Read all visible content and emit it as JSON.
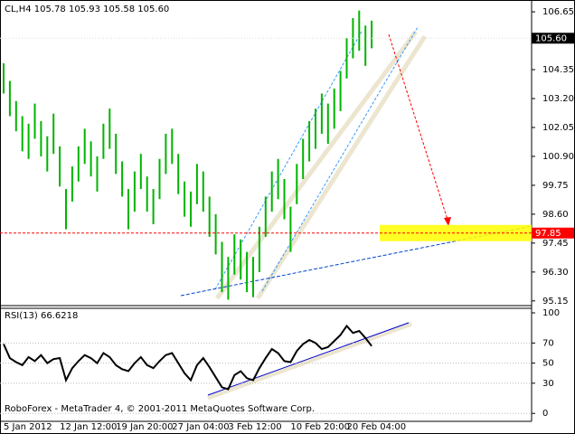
{
  "chart_data": [
    {
      "type": "hilo",
      "title": "CL,H4  105.78 105.93 105.58 105.60",
      "color": "#00b400",
      "categories": [
        "5 Jan 2012",
        null,
        null,
        null,
        null,
        null,
        null,
        null,
        null,
        "12 Jan 12:00",
        null,
        null,
        null,
        null,
        null,
        null,
        null,
        null,
        "19 Jan 20:00",
        null,
        null,
        null,
        null,
        null,
        null,
        null,
        null,
        "27 Jan 04:00",
        null,
        null,
        null,
        null,
        null,
        null,
        null,
        null,
        "3 Feb 12:00",
        null,
        null,
        null,
        null,
        null,
        null,
        null,
        null,
        null,
        "10 Feb 20:00",
        null,
        null,
        null,
        null,
        null,
        null,
        null,
        null,
        "20 Feb 04:00",
        null,
        null,
        null,
        null
      ],
      "high": [
        104.6,
        103.9,
        103.1,
        102.5,
        102.2,
        103.0,
        102.3,
        101.7,
        102.6,
        101.3,
        99.6,
        100.5,
        101.3,
        102.0,
        101.5,
        100.9,
        102.2,
        102.8,
        101.8,
        100.7,
        99.6,
        100.3,
        101.0,
        100.1,
        99.6,
        100.8,
        101.8,
        102.0,
        101.0,
        99.9,
        99.5,
        100.6,
        100.3,
        99.3,
        98.6,
        97.5,
        96.9,
        97.8,
        97.6,
        97.1,
        96.9,
        98.1,
        99.3,
        100.3,
        100.8,
        100.0,
        98.9,
        100.6,
        101.6,
        102.3,
        102.8,
        103.4,
        103.0,
        103.6,
        104.3,
        105.6,
        106.4,
        106.7,
        106.1,
        106.3
      ],
      "low": [
        103.4,
        102.5,
        101.9,
        101.1,
        100.8,
        101.6,
        100.9,
        100.3,
        101.0,
        99.7,
        98.0,
        99.1,
        99.9,
        100.6,
        100.1,
        99.5,
        100.8,
        101.2,
        100.2,
        99.3,
        98.0,
        98.7,
        99.6,
        98.7,
        98.2,
        99.2,
        100.2,
        100.6,
        99.4,
        98.5,
        98.1,
        99.0,
        98.7,
        97.7,
        97.0,
        95.5,
        95.2,
        96.2,
        96.0,
        95.5,
        95.3,
        96.3,
        97.7,
        98.7,
        99.2,
        98.4,
        97.1,
        99.0,
        100.0,
        100.7,
        101.2,
        101.8,
        101.4,
        102.0,
        102.7,
        104.0,
        104.8,
        105.1,
        104.5,
        105.2
      ],
      "ylim": [
        95.0,
        107.12
      ],
      "yticks": [
        106.65,
        104.35,
        {
          "value": 103.2,
          "label": "103.20"
        },
        102.05,
        {
          "value": 100.9,
          "label": "100.90"
        },
        99.75,
        {
          "value": 98.6,
          "label": "98.60"
        },
        97.45,
        {
          "value": 96.3,
          "label": "96.30"
        },
        95.15
      ],
      "last_price": {
        "value": 105.6,
        "label": "105.60"
      },
      "marker": {
        "value": 97.85,
        "color": "#ff0000"
      }
    },
    {
      "type": "line",
      "title": "RSI(13) 66.6218",
      "color": "#000000",
      "values": [
        69,
        55,
        51,
        48,
        56,
        52,
        58,
        50,
        54,
        55,
        33,
        45,
        52,
        58,
        55,
        50,
        60,
        56,
        48,
        44,
        42,
        50,
        56,
        48,
        45,
        52,
        58,
        60,
        50,
        40,
        33,
        48,
        55,
        46,
        36,
        26,
        24,
        38,
        42,
        35,
        33,
        45,
        55,
        64,
        60,
        52,
        51,
        62,
        69,
        73,
        70,
        64,
        66,
        72,
        78,
        87,
        80,
        82,
        75,
        67
      ],
      "ylim": [
        -7,
        104.5
      ],
      "yticks": [
        100,
        70,
        50,
        30,
        0
      ]
    }
  ],
  "footer": "RoboForex - MetaTrader 4, © 2001-2011 MetaQuotes Software Corp."
}
